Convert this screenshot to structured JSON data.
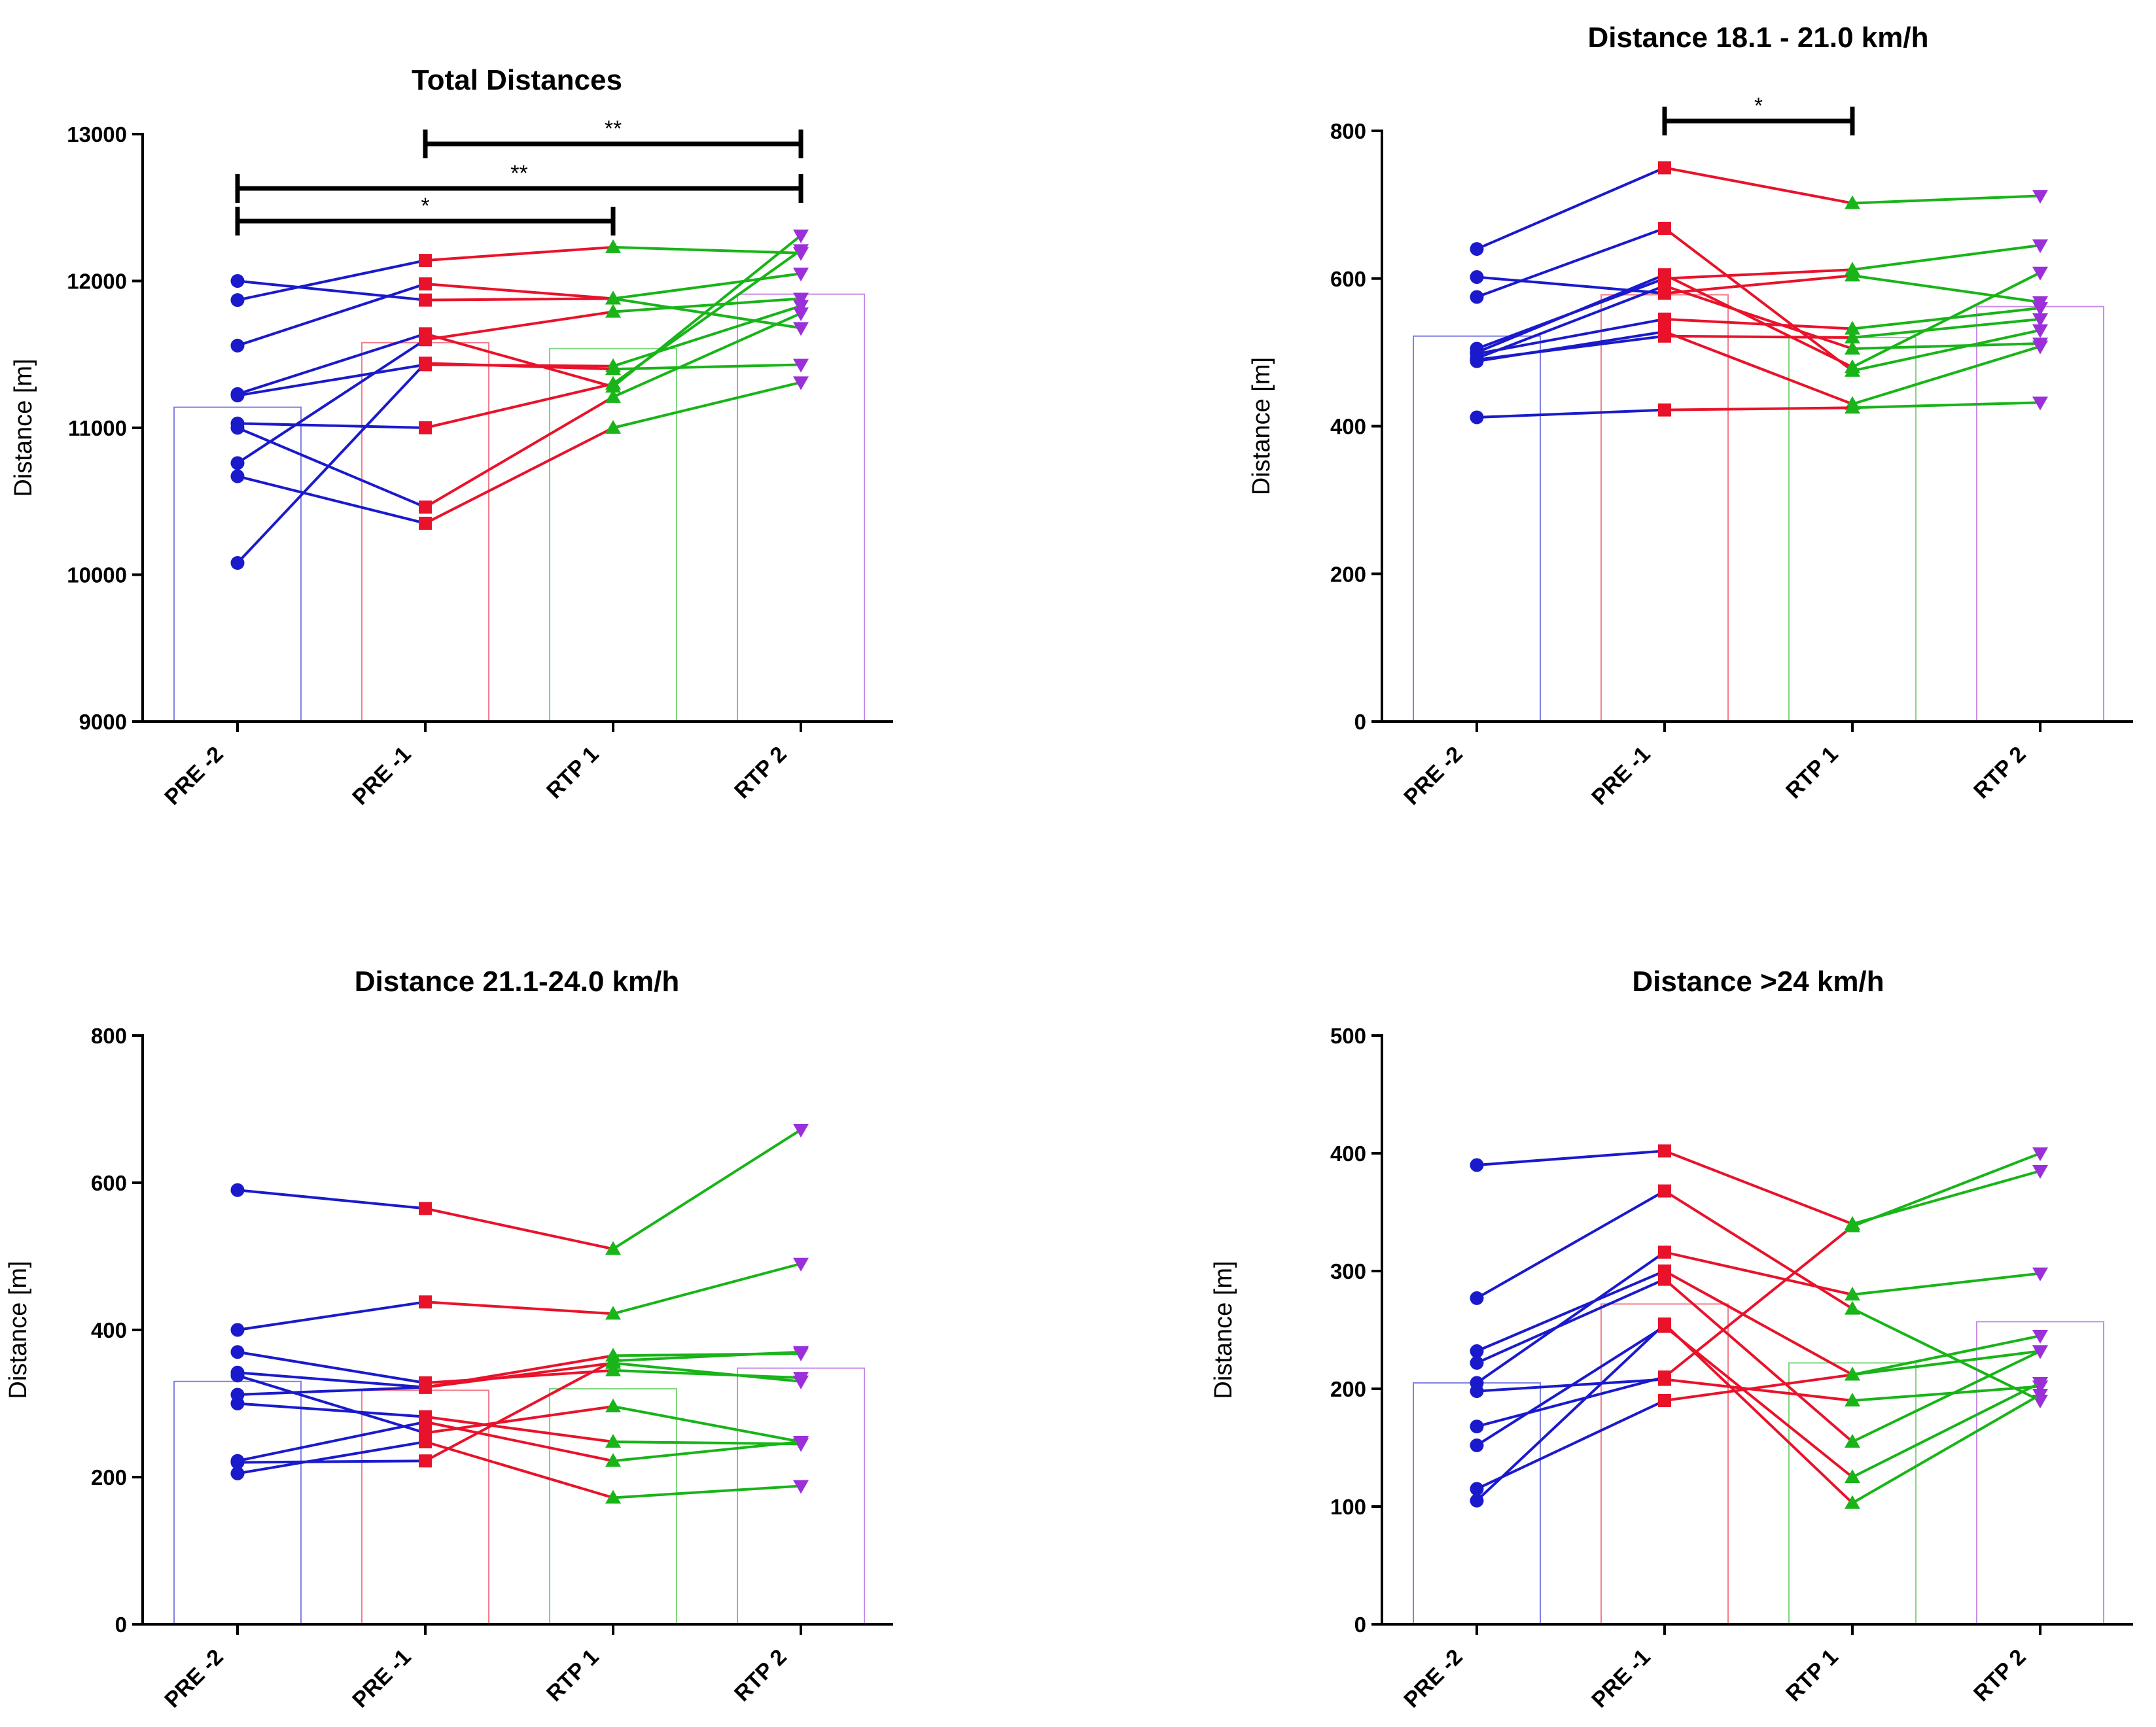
{
  "colors": {
    "pre2": "#1a1acc",
    "pre1": "#e8132b",
    "rtp1": "#18b418",
    "rtp2": "#9b30d9",
    "axis": "#000000"
  },
  "chart_data": [
    {
      "type": "line",
      "title": "Total Distances",
      "ylabel": "Distance [m]",
      "categories": [
        "PRE -2",
        "PRE -1",
        "RTP 1",
        "RTP 2"
      ],
      "ylim": [
        9000,
        13000
      ],
      "yticks": [
        "9000",
        "10000",
        "11000",
        "12000",
        "13000"
      ],
      "bar_means": [
        11140,
        11580,
        11540,
        11910
      ],
      "series": [
        {
          "values": [
            12000,
            11870,
            11880,
            12050
          ]
        },
        {
          "values": [
            11870,
            12140,
            12230,
            12190
          ]
        },
        {
          "values": [
            11560,
            11980,
            11880,
            11680
          ]
        },
        {
          "values": [
            11230,
            11640,
            11280,
            12310
          ]
        },
        {
          "values": [
            11220,
            11430,
            11420,
            11830
          ]
        },
        {
          "values": [
            11030,
            11000,
            11300,
            12210
          ]
        },
        {
          "values": [
            11000,
            10460,
            11210,
            11780
          ]
        },
        {
          "values": [
            10760,
            11600,
            11790,
            11880
          ]
        },
        {
          "values": [
            10670,
            10350,
            11000,
            11310
          ]
        },
        {
          "values": [
            10080,
            11440,
            11400,
            11430
          ]
        }
      ],
      "significance": [
        {
          "from": 1,
          "to": 3,
          "label": "**"
        },
        {
          "from": 0,
          "to": 3,
          "label": "**"
        },
        {
          "from": 0,
          "to": 2,
          "label": "*"
        }
      ]
    },
    {
      "type": "line",
      "title": "Distance 18.1 - 21.0 km/h",
      "ylabel": "Distance [m]",
      "categories": [
        "PRE -2",
        "PRE -1",
        "RTP 1",
        "RTP 2"
      ],
      "ylim": [
        0,
        800
      ],
      "yticks": [
        "0",
        "200",
        "400",
        "600",
        "800"
      ],
      "bar_means": [
        522,
        578,
        520,
        562
      ],
      "series": [
        {
          "values": [
            640,
            750,
            702,
            712
          ]
        },
        {
          "values": [
            602,
            580,
            604,
            568
          ]
        },
        {
          "values": [
            575,
            668,
            475,
            530
          ]
        },
        {
          "values": [
            505,
            600,
            612,
            645
          ]
        },
        {
          "values": [
            500,
            605,
            480,
            608
          ]
        },
        {
          "values": [
            498,
            545,
            532,
            560
          ]
        },
        {
          "values": [
            492,
            590,
            505,
            512
          ]
        },
        {
          "values": [
            490,
            522,
            520,
            545
          ]
        },
        {
          "values": [
            488,
            528,
            430,
            508
          ]
        },
        {
          "values": [
            412,
            422,
            425,
            432
          ]
        }
      ],
      "significance": [
        {
          "from": 1,
          "to": 2,
          "label": "*"
        }
      ]
    },
    {
      "type": "line",
      "title": "Distance 21.1-24.0 km/h",
      "ylabel": "Distance [m]",
      "categories": [
        "PRE -2",
        "PRE -1",
        "RTP 1",
        "RTP 2"
      ],
      "ylim": [
        0,
        800
      ],
      "yticks": [
        "0",
        "200",
        "400",
        "600",
        "800"
      ],
      "bar_means": [
        330,
        318,
        320,
        348
      ],
      "series": [
        {
          "values": [
            590,
            565,
            510,
            672
          ]
        },
        {
          "values": [
            400,
            438,
            422,
            490
          ]
        },
        {
          "values": [
            370,
            328,
            345,
            335
          ]
        },
        {
          "values": [
            342,
            322,
            365,
            368
          ]
        },
        {
          "values": [
            338,
            260,
            296,
            248
          ]
        },
        {
          "values": [
            312,
            322,
            355,
            330
          ]
        },
        {
          "values": [
            300,
            282,
            248,
            245
          ]
        },
        {
          "values": [
            222,
            275,
            222,
            248
          ]
        },
        {
          "values": [
            220,
            222,
            358,
            370
          ]
        },
        {
          "values": [
            205,
            248,
            172,
            188
          ]
        }
      ],
      "significance": []
    },
    {
      "type": "line",
      "title": "Distance >24 km/h",
      "ylabel": "Distance [m]",
      "categories": [
        "PRE -2",
        "PRE -1",
        "RTP 1",
        "RTP 2"
      ],
      "ylim": [
        0,
        500
      ],
      "yticks": [
        "0",
        "100",
        "200",
        "300",
        "400",
        "500"
      ],
      "bar_means": [
        205,
        272,
        222,
        257
      ],
      "series": [
        {
          "values": [
            390,
            402,
            340,
            385
          ]
        },
        {
          "values": [
            277,
            368,
            268,
            190
          ]
        },
        {
          "values": [
            232,
            300,
            212,
            245
          ]
        },
        {
          "values": [
            222,
            293,
            155,
            232
          ]
        },
        {
          "values": [
            205,
            316,
            280,
            298
          ]
        },
        {
          "values": [
            198,
            208,
            190,
            202
          ]
        },
        {
          "values": [
            168,
            210,
            338,
            400
          ]
        },
        {
          "values": [
            152,
            253,
            125,
            205
          ]
        },
        {
          "values": [
            115,
            190,
            212,
            232
          ]
        },
        {
          "values": [
            105,
            255,
            103,
            195
          ]
        }
      ],
      "significance": []
    }
  ]
}
